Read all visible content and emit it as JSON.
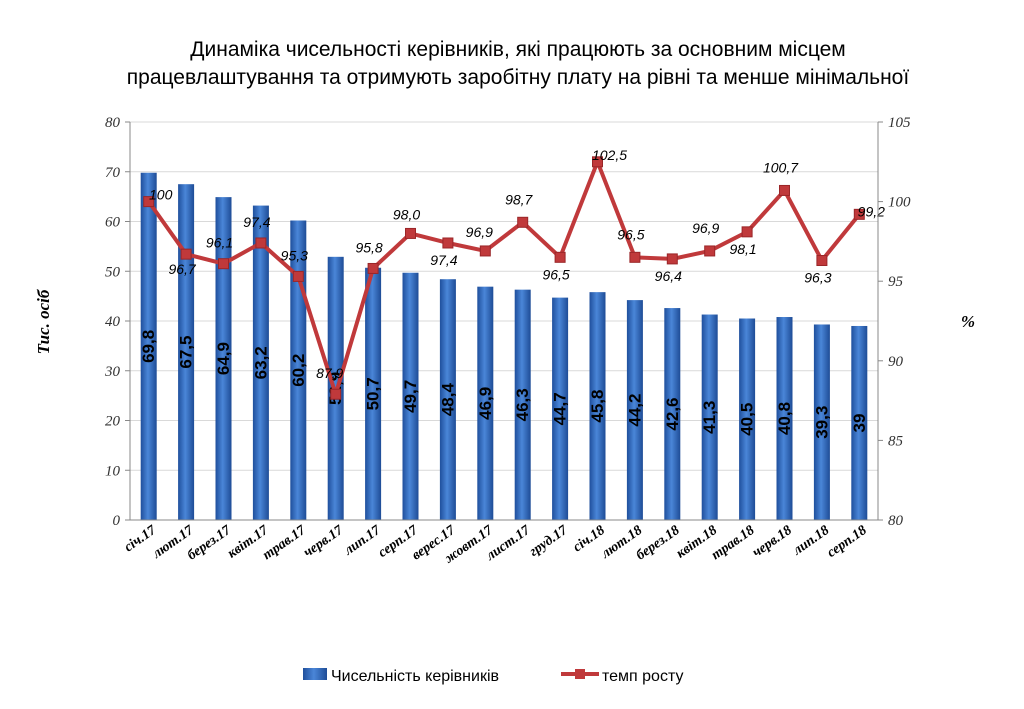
{
  "chart_data": {
    "type": "bar",
    "title_line1": "Динаміка чисельності керівників, які працюють за основним місцем",
    "title_line2": "працевлаштування та отримують заробітну плату на рівні та менше мінімальної",
    "ylabel": "Тис. осіб",
    "y2label": "%",
    "ylim": [
      0,
      80
    ],
    "y2lim": [
      80,
      105
    ],
    "yticks": [
      "0",
      "10",
      "20",
      "30",
      "40",
      "50",
      "60",
      "70",
      "80"
    ],
    "y2ticks": [
      "80",
      "85",
      "90",
      "95",
      "100",
      "105"
    ],
    "categories": [
      "січ.17",
      "лют.17",
      "берез.17",
      "квіт.17",
      "трав.17",
      "черв.17",
      "лип.17",
      "серп.17",
      "верес.17",
      "жовт.17",
      "лист.17",
      "груд.17",
      "січ.18",
      "лют.18",
      "берез.18",
      "квіт.18",
      "трав.18",
      "черв.18",
      "лип.18",
      "серп.18"
    ],
    "series": [
      {
        "name": "Чисельність керівників",
        "type": "bar",
        "axis": "left",
        "color": "#3c72c4",
        "values": [
          69.8,
          67.5,
          64.9,
          63.2,
          60.2,
          52.9,
          50.7,
          49.7,
          48.4,
          46.9,
          46.3,
          44.7,
          45.8,
          44.2,
          42.6,
          41.3,
          40.5,
          40.8,
          39.3,
          39
        ],
        "labels": [
          "69,8",
          "67,5",
          "64,9",
          "63,2",
          "60,2",
          "52,9",
          "50,7",
          "49,7",
          "48,4",
          "46,9",
          "46,3",
          "44,7",
          "45,8",
          "44,2",
          "42,6",
          "41,3",
          "40,5",
          "40,8",
          "39,3",
          "39"
        ]
      },
      {
        "name": "темп росту",
        "type": "line",
        "axis": "right",
        "color": "#c0393b",
        "values": [
          100,
          96.7,
          96.1,
          97.4,
          95.3,
          87.9,
          95.8,
          98.0,
          97.4,
          96.9,
          98.7,
          96.5,
          102.5,
          96.5,
          96.4,
          96.9,
          98.1,
          100.7,
          96.3,
          99.2
        ],
        "labels": [
          "100",
          "96,7",
          "96,1",
          "97,4",
          "95,3",
          "87,9",
          "95,8",
          "98,0",
          "97,4",
          "96,9",
          "98,7",
          "96,5",
          "102,5",
          "96,5",
          "96,4",
          "96,9",
          "98,1",
          "100,7",
          "96,3",
          "99,2"
        ]
      }
    ],
    "legend": "bottom"
  }
}
